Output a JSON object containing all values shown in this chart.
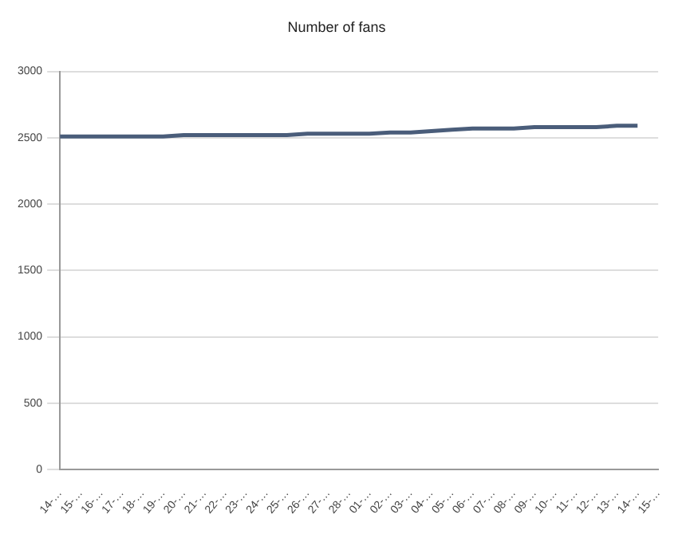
{
  "chart_data": {
    "type": "line",
    "title": "Number of fans",
    "categories": [
      "14-…",
      "15-…",
      "16-…",
      "17-…",
      "18-…",
      "19-…",
      "20-…",
      "21-…",
      "22-…",
      "23-…",
      "24-…",
      "25-…",
      "26-…",
      "27-…",
      "28-…",
      "01-…",
      "02-…",
      "03-…",
      "04-…",
      "05-…",
      "06-…",
      "07-…",
      "08-…",
      "09-…",
      "10-…",
      "11-…",
      "12-…",
      "13-…",
      "14-…",
      "15-…"
    ],
    "series": [
      {
        "color": "#4a5d7a",
        "values": [
          2510,
          2510,
          2510,
          2510,
          2510,
          2510,
          2520,
          2520,
          2520,
          2520,
          2520,
          2520,
          2530,
          2530,
          2530,
          2530,
          2540,
          2540,
          2550,
          2560,
          2570,
          2570,
          2570,
          2580,
          2580,
          2580,
          2580,
          2590,
          2590,
          null
        ]
      }
    ],
    "ylim": [
      0,
      3000
    ],
    "yticks": [
      0,
      500,
      1000,
      1500,
      2000,
      2500,
      3000
    ],
    "grid": "y",
    "legend": false,
    "marker": "none",
    "line_style": "solid"
  }
}
